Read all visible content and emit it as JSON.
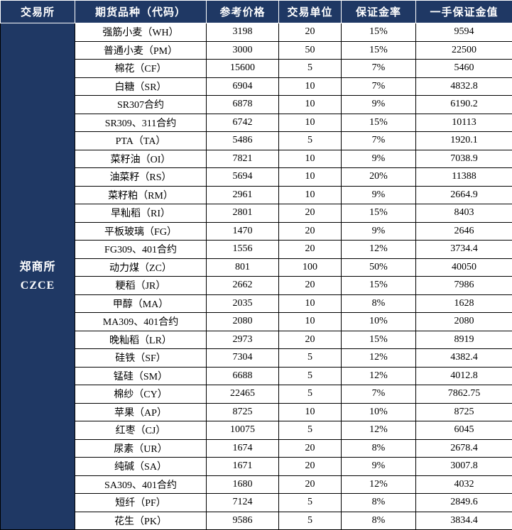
{
  "header": {
    "columns": [
      "交易所",
      "期货品种（代码）",
      "参考价格",
      "交易单位",
      "保证金率",
      "一手保证金值"
    ]
  },
  "exchange": {
    "name": "郑商所",
    "code": "CZCE"
  },
  "colors": {
    "header_bg": "#1f3864",
    "header_text": "#ffffff",
    "cell_bg": "#ffffff",
    "border": "#000000"
  },
  "chart_data": {
    "type": "table",
    "title": "",
    "columns": [
      "交易所",
      "期货品种（代码）",
      "参考价格",
      "交易单位",
      "保证金率",
      "一手保证金值"
    ],
    "exchange": "郑商所 CZCE",
    "rows": [
      [
        "强筋小麦（WH）",
        "3198",
        "20",
        "15%",
        "9594"
      ],
      [
        "普通小麦（PM）",
        "3000",
        "50",
        "15%",
        "22500"
      ],
      [
        "棉花（CF）",
        "15600",
        "5",
        "7%",
        "5460"
      ],
      [
        "白糖（SR）",
        "6904",
        "10",
        "7%",
        "4832.8"
      ],
      [
        "SR307合约",
        "6878",
        "10",
        "9%",
        "6190.2"
      ],
      [
        "SR309、311合约",
        "6742",
        "10",
        "15%",
        "10113"
      ],
      [
        "PTA（TA）",
        "5486",
        "5",
        "7%",
        "1920.1"
      ],
      [
        "菜籽油（OI）",
        "7821",
        "10",
        "9%",
        "7038.9"
      ],
      [
        "油菜籽（RS）",
        "5694",
        "10",
        "20%",
        "11388"
      ],
      [
        "菜籽粕（RM）",
        "2961",
        "10",
        "9%",
        "2664.9"
      ],
      [
        "早籼稻（RI）",
        "2801",
        "20",
        "15%",
        "8403"
      ],
      [
        "平板玻璃（FG）",
        "1470",
        "20",
        "9%",
        "2646"
      ],
      [
        "FG309、401合约",
        "1556",
        "20",
        "12%",
        "3734.4"
      ],
      [
        "动力煤（ZC）",
        "801",
        "100",
        "50%",
        "40050"
      ],
      [
        "粳稻（JR）",
        "2662",
        "20",
        "15%",
        "7986"
      ],
      [
        "甲醇（MA）",
        "2035",
        "10",
        "8%",
        "1628"
      ],
      [
        "MA309、401合约",
        "2080",
        "10",
        "10%",
        "2080"
      ],
      [
        "晚籼稻（LR）",
        "2973",
        "20",
        "15%",
        "8919"
      ],
      [
        "硅铁（SF）",
        "7304",
        "5",
        "12%",
        "4382.4"
      ],
      [
        "锰硅（SM）",
        "6688",
        "5",
        "12%",
        "4012.8"
      ],
      [
        "棉纱（CY）",
        "22465",
        "5",
        "7%",
        "7862.75"
      ],
      [
        "苹果（AP）",
        "8725",
        "10",
        "10%",
        "8725"
      ],
      [
        "红枣（CJ）",
        "10075",
        "5",
        "12%",
        "6045"
      ],
      [
        "尿素（UR）",
        "1674",
        "20",
        "8%",
        "2678.4"
      ],
      [
        "纯碱（SA）",
        "1671",
        "20",
        "9%",
        "3007.8"
      ],
      [
        "SA309、401合约",
        "1680",
        "20",
        "12%",
        "4032"
      ],
      [
        "短纤（PF）",
        "7124",
        "5",
        "8%",
        "2849.6"
      ],
      [
        "花生（PK）",
        "9586",
        "5",
        "8%",
        "3834.4"
      ]
    ]
  }
}
